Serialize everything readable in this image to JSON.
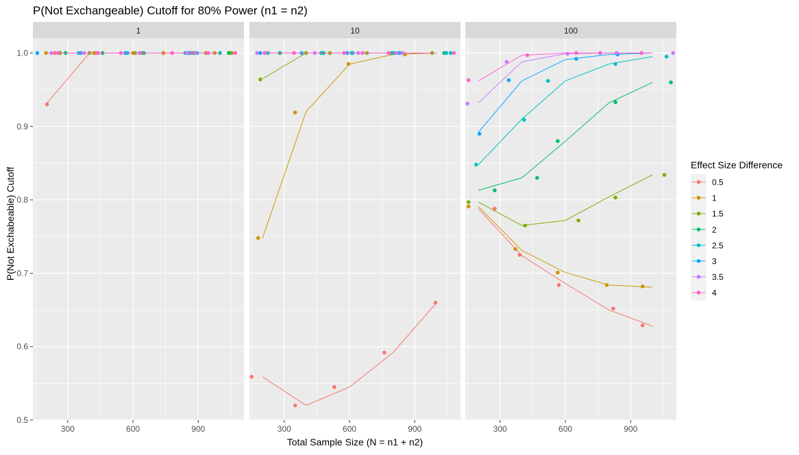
{
  "chart_data": {
    "type": "scatter",
    "title": "P(Not Exchangeable) Cutoff for 80% Power (n1 = n2)",
    "xlabel": "Total Sample Size (N = n1 + n2)",
    "ylabel": "P(Not Exchabeable) Cutoff",
    "xlim": [
      140,
      1110
    ],
    "ylim": [
      0.5,
      1.02
    ],
    "x_ticks": [
      300,
      600,
      900
    ],
    "y_ticks": [
      0.5,
      0.6,
      0.7,
      0.8,
      0.9,
      1.0
    ],
    "x_tick_labels": [
      "300",
      "600",
      "900"
    ],
    "y_tick_labels": [
      "0.5",
      "0.6",
      "0.7",
      "0.8",
      "0.9",
      "1.0"
    ],
    "grid": true,
    "legend": {
      "title": "Effect Size Difference",
      "placement": "right",
      "entries": [
        "0.5",
        "1",
        "1.5",
        "2",
        "2.5",
        "3",
        "3.5",
        "4"
      ],
      "colors": [
        "#F8766D",
        "#CD9600",
        "#7CAE00",
        "#00BE67",
        "#00BFC4",
        "#00A9FF",
        "#C77CFF",
        "#FF61CC"
      ]
    },
    "panels": [
      {
        "label": "1",
        "series": [
          {
            "name": "0.5",
            "line": {
              "x": [
                200,
                400,
                600,
                800,
                1000
              ],
              "y": [
                0.93,
                1.0,
                1.0,
                1.0,
                1.0
              ]
            },
            "points": {
              "x": [
                205,
                240,
                430,
                640,
                740,
                870,
                1055
              ],
              "y": [
                0.93,
                1.0,
                1.0,
                1.0,
                1.0,
                1.0,
                1.0
              ]
            }
          },
          {
            "name": "1",
            "line": {
              "x": [
                200,
                400,
                600,
                800,
                1000
              ],
              "y": [
                1.0,
                1.0,
                1.0,
                1.0,
                1.0
              ]
            },
            "points": {
              "x": [
                200,
                420,
                600,
                740,
                935,
                975
              ],
              "y": [
                1.0,
                1.0,
                1.0,
                1.0,
                1.0,
                1.0
              ]
            }
          },
          {
            "name": "1.5",
            "line": {
              "x": [
                200,
                400,
                600,
                800,
                1000
              ],
              "y": [
                1.0,
                1.0,
                1.0,
                1.0,
                1.0
              ]
            },
            "points": {
              "x": [
                265,
                400,
                610,
                855,
                1050
              ],
              "y": [
                1.0,
                1.0,
                1.0,
                1.0,
                1.0
              ]
            }
          },
          {
            "name": "2",
            "line": {
              "x": [
                200,
                400,
                600,
                800,
                1000
              ],
              "y": [
                1.0,
                1.0,
                1.0,
                1.0,
                1.0
              ]
            },
            "points": {
              "x": [
                290,
                460,
                650,
                880,
                1040
              ],
              "y": [
                1.0,
                1.0,
                1.0,
                1.0,
                1.0
              ]
            }
          },
          {
            "name": "2.5",
            "line": {
              "x": [
                200,
                400,
                600,
                800,
                1000
              ],
              "y": [
                1.0,
                1.0,
                1.0,
                1.0,
                1.0
              ]
            },
            "points": {
              "x": [
                350,
                575,
                840,
                895,
                1000
              ],
              "y": [
                1.0,
                1.0,
                1.0,
                1.0,
                1.0
              ]
            }
          },
          {
            "name": "3",
            "line": {
              "x": [
                200,
                400,
                600,
                800,
                1000
              ],
              "y": [
                1.0,
                1.0,
                1.0,
                1.0,
                1.0
              ]
            },
            "points": {
              "x": [
                160,
                360,
                565,
                860
              ],
              "y": [
                1.0,
                1.0,
                1.0,
                1.0
              ]
            }
          },
          {
            "name": "3.5",
            "line": {
              "x": [
                200,
                400,
                600,
                800,
                1000
              ],
              "y": [
                1.0,
                1.0,
                1.0,
                1.0,
                1.0
              ]
            },
            "points": {
              "x": [
                225,
                375,
                630,
                850,
                885
              ],
              "y": [
                1.0,
                1.0,
                1.0,
                1.0,
                1.0
              ]
            }
          },
          {
            "name": "4",
            "line": {
              "x": [
                200,
                400,
                600,
                800,
                1000
              ],
              "y": [
                1.0,
                1.0,
                1.0,
                1.0,
                1.0
              ]
            },
            "points": {
              "x": [
                255,
                440,
                545,
                780,
                945,
                1070
              ],
              "y": [
                1.0,
                1.0,
                1.0,
                1.0,
                1.0,
                1.0
              ]
            }
          }
        ]
      },
      {
        "label": "10",
        "series": [
          {
            "name": "0.5",
            "line": {
              "x": [
                200,
                400,
                600,
                800,
                1000
              ],
              "y": [
                0.559,
                0.52,
                0.545,
                0.592,
                0.66
              ]
            },
            "points": {
              "x": [
                150,
                350,
                530,
                760,
                995
              ],
              "y": [
                0.559,
                0.52,
                0.545,
                0.592,
                0.66
              ]
            }
          },
          {
            "name": "1",
            "line": {
              "x": [
                200,
                400,
                600,
                800,
                1000
              ],
              "y": [
                0.748,
                0.92,
                0.985,
                0.998,
                1.0
              ]
            },
            "points": {
              "x": [
                180,
                350,
                595,
                855
              ],
              "y": [
                0.748,
                0.919,
                0.985,
                0.998
              ]
            }
          },
          {
            "name": "1.5",
            "line": {
              "x": [
                200,
                400,
                600,
                800,
                1000
              ],
              "y": [
                0.965,
                1.0,
                1.0,
                1.0,
                1.0
              ]
            },
            "points": {
              "x": [
                190,
                400,
                510,
                680,
                980
              ],
              "y": [
                0.964,
                1.0,
                1.0,
                1.0,
                1.0
              ]
            }
          },
          {
            "name": "2",
            "line": {
              "x": [
                200,
                400,
                600,
                800,
                1000
              ],
              "y": [
                1.0,
                1.0,
                1.0,
                1.0,
                1.0
              ]
            },
            "points": {
              "x": [
                280,
                480,
                610,
                795,
                1035
              ],
              "y": [
                1.0,
                1.0,
                1.0,
                1.0,
                1.0
              ]
            }
          },
          {
            "name": "2.5",
            "line": {
              "x": [
                200,
                400,
                600,
                800,
                1000
              ],
              "y": [
                1.0,
                1.0,
                1.0,
                1.0,
                1.0
              ]
            },
            "points": {
              "x": [
                225,
                470,
                615,
                805,
                1045,
                1065
              ],
              "y": [
                1.0,
                1.0,
                1.0,
                1.0,
                1.0,
                1.0
              ]
            }
          },
          {
            "name": "3",
            "line": {
              "x": [
                200,
                400,
                600,
                800,
                1000
              ],
              "y": [
                1.0,
                1.0,
                1.0,
                1.0,
                1.0
              ]
            },
            "points": {
              "x": [
                190,
                380,
                590,
                830
              ],
              "y": [
                1.0,
                1.0,
                1.0,
                1.0
              ]
            }
          },
          {
            "name": "3.5",
            "line": {
              "x": [
                200,
                400,
                600,
                800,
                1000
              ],
              "y": [
                1.0,
                1.0,
                1.0,
                1.0,
                1.0
              ]
            },
            "points": {
              "x": [
                175,
                440,
                640,
                815,
                845
              ],
              "y": [
                1.0,
                1.0,
                1.0,
                1.0,
                1.0
              ]
            }
          },
          {
            "name": "4",
            "line": {
              "x": [
                200,
                400,
                600,
                800,
                1000
              ],
              "y": [
                1.0,
                1.0,
                1.0,
                1.0,
                1.0
              ]
            },
            "points": {
              "x": [
                210,
                345,
                575,
                660,
                780,
                1080
              ],
              "y": [
                1.0,
                1.0,
                1.0,
                1.0,
                1.0,
                1.0
              ]
            }
          }
        ]
      },
      {
        "label": "100",
        "series": [
          {
            "name": "0.5",
            "line": {
              "x": [
                200,
                400,
                600,
                800,
                1000
              ],
              "y": [
                0.788,
                0.724,
                0.686,
                0.65,
                0.628
              ]
            },
            "points": {
              "x": [
                275,
                390,
                570,
                820,
                955
              ],
              "y": [
                0.788,
                0.725,
                0.684,
                0.652,
                0.629
              ]
            }
          },
          {
            "name": "1",
            "line": {
              "x": [
                200,
                400,
                600,
                800,
                1000
              ],
              "y": [
                0.791,
                0.731,
                0.701,
                0.684,
                0.681
              ]
            },
            "points": {
              "x": [
                155,
                370,
                565,
                790,
                955
              ],
              "y": [
                0.791,
                0.733,
                0.701,
                0.684,
                0.682
              ]
            }
          },
          {
            "name": "1.5",
            "line": {
              "x": [
                200,
                400,
                600,
                800,
                1000
              ],
              "y": [
                0.797,
                0.765,
                0.772,
                0.804,
                0.834
              ]
            },
            "points": {
              "x": [
                155,
                415,
                660,
                830,
                1055
              ],
              "y": [
                0.797,
                0.765,
                0.772,
                0.803,
                0.834
              ]
            }
          },
          {
            "name": "2",
            "line": {
              "x": [
                200,
                400,
                600,
                800,
                1000
              ],
              "y": [
                0.813,
                0.83,
                0.88,
                0.932,
                0.96
              ]
            },
            "points": {
              "x": [
                275,
                470,
                565,
                830,
                1085
              ],
              "y": [
                0.813,
                0.83,
                0.88,
                0.933,
                0.96
              ]
            }
          },
          {
            "name": "2.5",
            "line": {
              "x": [
                200,
                400,
                600,
                800,
                1000
              ],
              "y": [
                0.848,
                0.91,
                0.962,
                0.985,
                0.995
              ]
            },
            "points": {
              "x": [
                190,
                410,
                520,
                830,
                1065
              ],
              "y": [
                0.848,
                0.909,
                0.962,
                0.985,
                0.995
              ]
            }
          },
          {
            "name": "3",
            "line": {
              "x": [
                200,
                400,
                600,
                800,
                1000
              ],
              "y": [
                0.892,
                0.962,
                0.991,
                0.998,
                1.0
              ]
            },
            "points": {
              "x": [
                205,
                340,
                650,
                840
              ],
              "y": [
                0.89,
                0.963,
                0.992,
                0.998
              ]
            }
          },
          {
            "name": "3.5",
            "line": {
              "x": [
                200,
                400,
                600,
                800,
                1000
              ],
              "y": [
                0.932,
                0.988,
                0.999,
                1.0,
                1.0
              ]
            },
            "points": {
              "x": [
                150,
                330,
                610,
                835,
                1095
              ],
              "y": [
                0.931,
                0.988,
                0.999,
                1.0,
                1.0
              ]
            }
          },
          {
            "name": "4",
            "line": {
              "x": [
                200,
                400,
                600,
                800,
                1000
              ],
              "y": [
                0.962,
                0.997,
                1.0,
                1.0,
                1.0
              ]
            },
            "points": {
              "x": [
                155,
                425,
                650,
                760,
                950
              ],
              "y": [
                0.963,
                0.997,
                1.0,
                1.0,
                1.0
              ]
            }
          }
        ]
      }
    ]
  }
}
